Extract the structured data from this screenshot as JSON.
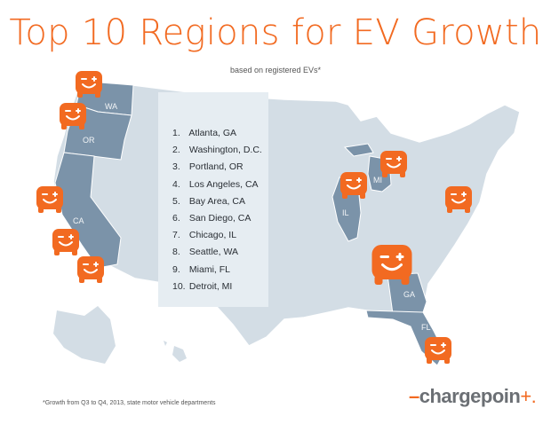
{
  "title": "Top 10 Regions for EV Growth",
  "subtitle": "based on registered EVs*",
  "colors": {
    "accent": "#f26a21",
    "map_base": "#d3dde5",
    "map_highlight": "#7b93a9",
    "ranking_panel": "#e6edf2"
  },
  "ranking": [
    {
      "rank": "1.",
      "name": "Atlanta, GA"
    },
    {
      "rank": "2.",
      "name": "Washington, D.C."
    },
    {
      "rank": "3.",
      "name": "Portland, OR"
    },
    {
      "rank": "4.",
      "name": "Los Angeles, CA"
    },
    {
      "rank": "5.",
      "name": "Bay Area, CA"
    },
    {
      "rank": "6.",
      "name": "San Diego, CA"
    },
    {
      "rank": "7.",
      "name": "Chicago, IL"
    },
    {
      "rank": "8.",
      "name": "Seattle, WA"
    },
    {
      "rank": "9.",
      "name": "Miami, FL"
    },
    {
      "rank": "10.",
      "name": "Detroit, MI"
    }
  ],
  "state_labels": [
    "WA",
    "OR",
    "CA",
    "IL",
    "MI",
    "GA",
    "FL"
  ],
  "marker_icon": "smiling-car-icon",
  "footnote": "*Growth from Q3 to Q4, 2013, state motor vehicle departments",
  "logo": {
    "dash": "–",
    "text": "chargepoin",
    "plus": "+."
  }
}
